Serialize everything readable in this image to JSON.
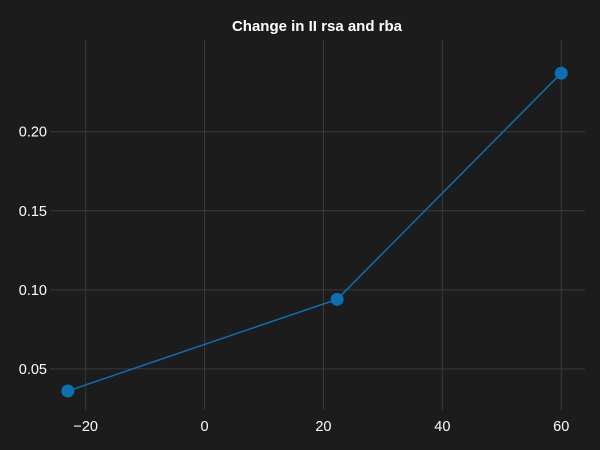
{
  "chart_data": {
    "type": "line",
    "title": "Change in II rsa and rba",
    "xlabel": "",
    "ylabel": "",
    "xlim": [
      -26,
      64
    ],
    "ylim": [
      0.024,
      0.258
    ],
    "x_ticks": [
      -20,
      0,
      20,
      40,
      60
    ],
    "x_tick_labels": [
      "−20",
      "0",
      "20",
      "40",
      "60"
    ],
    "y_ticks": [
      0.05,
      0.1,
      0.15,
      0.2
    ],
    "y_tick_labels": [
      "0.05",
      "0.10",
      "0.15",
      "0.20"
    ],
    "grid": true,
    "legend": "none",
    "series": [
      {
        "color": "#0b6fb0",
        "marker": "circle",
        "x": [
          -23,
          22.3,
          60
        ],
        "y": [
          0.036,
          0.094,
          0.237
        ]
      }
    ]
  }
}
